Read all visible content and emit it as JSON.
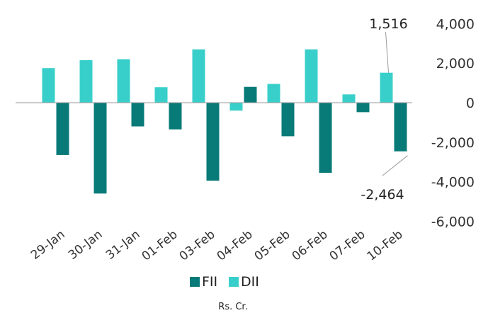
{
  "chart_data": {
    "type": "bar",
    "categories": [
      "29-Jan",
      "30-Jan",
      "31-Jan",
      "01-Feb",
      "03-Feb",
      "04-Feb",
      "05-Feb",
      "06-Feb",
      "07-Feb",
      "10-Feb"
    ],
    "series": [
      {
        "name": "FII",
        "color": "#087a78",
        "values": [
          -2650,
          -4600,
          -1200,
          -1350,
          -3950,
          800,
          -1700,
          -3550,
          -480,
          -2464
        ]
      },
      {
        "name": "DII",
        "color": "#38cfcb",
        "values": [
          1750,
          2150,
          2200,
          780,
          2700,
          -400,
          950,
          2700,
          420,
          1516
        ]
      }
    ],
    "ylim": [
      -6000,
      4000
    ],
    "yticks": [
      "4,000",
      "2,000",
      "0",
      "-2,000",
      "-4,000",
      "-6,000"
    ],
    "ytick_values": [
      4000,
      2000,
      0,
      -2000,
      -4000,
      -6000
    ],
    "y_axis_position": "right",
    "grid": false,
    "legend": "bottom",
    "annotations": [
      {
        "text": "1,516",
        "series": "DII",
        "category": "10-Feb"
      },
      {
        "text": "-2,464",
        "series": "FII",
        "category": "10-Feb"
      }
    ],
    "unit_label": "Rs. Cr."
  }
}
